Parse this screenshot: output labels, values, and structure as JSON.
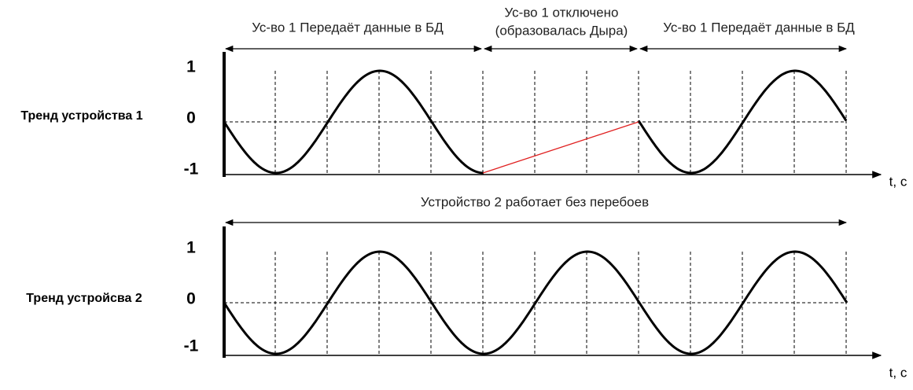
{
  "panels": [
    {
      "label": "Тренд устройства 1",
      "y_labels": [
        "1",
        "0",
        "-1"
      ],
      "axis_label": "t, с",
      "annotations": [
        "Ус-во 1 Передаёт данные в БД",
        "Ус-во 1 отключено",
        "(образовалась Дыра)",
        "Ус-во 1 Передаёт данные в БД"
      ]
    },
    {
      "label": "Тренд устройсва 2",
      "y_labels": [
        "1",
        "0",
        "-1"
      ],
      "axis_label": "t, с",
      "annotations": [
        "Устройство 2 работает без перебоев"
      ]
    }
  ]
}
